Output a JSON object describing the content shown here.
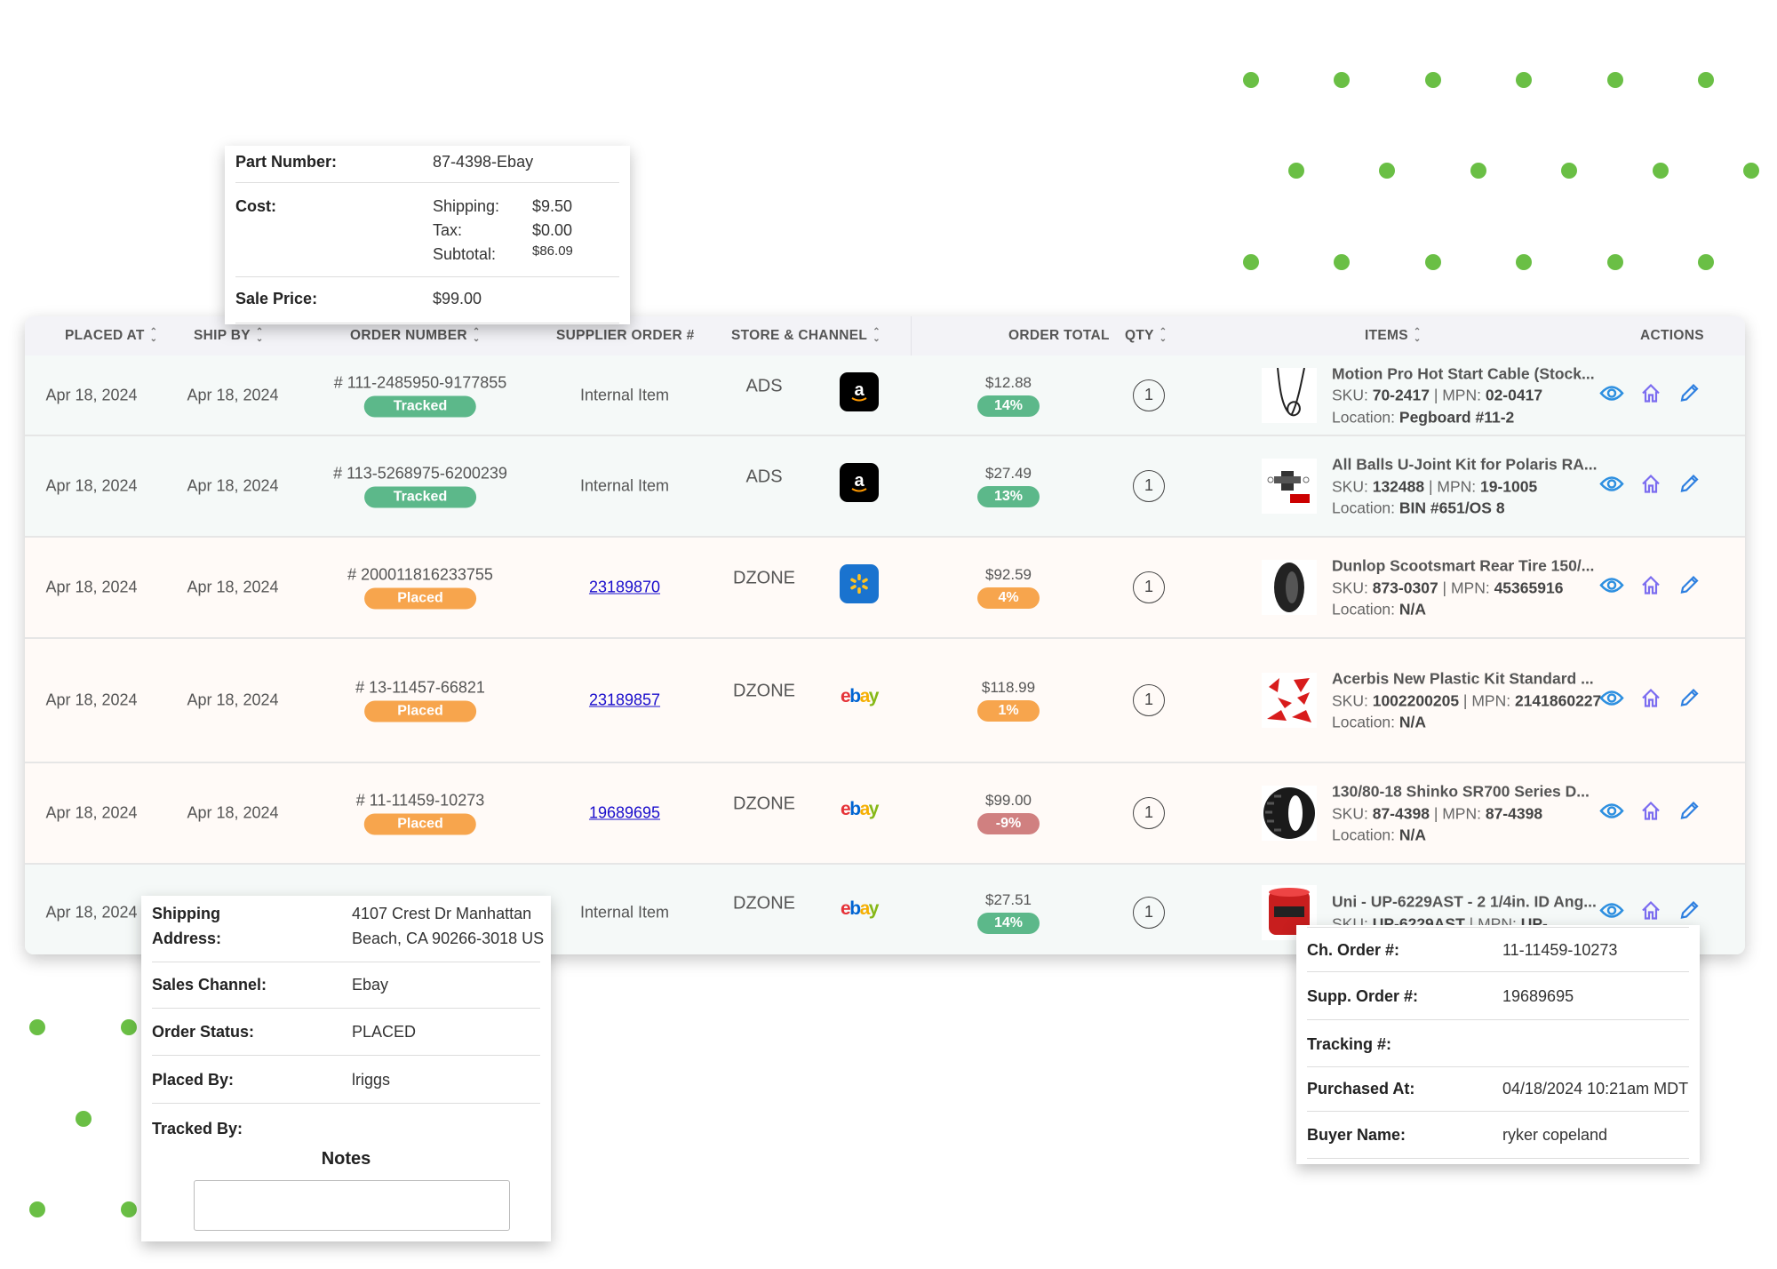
{
  "colors": {
    "accent_green_dot": "#6abf45",
    "tracked": "#5cb88a",
    "placed": "#f7a54d",
    "negative": "#d08080",
    "eye": "#2d8fe0",
    "home": "#7b6cf0",
    "pencil": "#2d7fe0"
  },
  "table": {
    "headers": [
      {
        "label": "PLACED AT",
        "sortable": true
      },
      {
        "label": "SHIP BY",
        "sortable": true
      },
      {
        "label": "ORDER NUMBER",
        "sortable": true
      },
      {
        "label": "SUPPLIER ORDER #",
        "sortable": false
      },
      {
        "label": "STORE & CHANNEL",
        "sortable": true
      },
      {
        "label": "ORDER TOTAL",
        "sortable": false
      },
      {
        "label": "QTY",
        "sortable": true
      },
      {
        "label": "ITEMS",
        "sortable": true
      },
      {
        "label": "ACTIONS",
        "sortable": false
      }
    ],
    "rows": [
      {
        "placed_at": "Apr 18, 2024",
        "ship_by": "Apr 18, 2024",
        "order_number": "# 111-2485950-9177855",
        "status": "Tracked",
        "supplier_order": "Internal Item",
        "supplier_link": false,
        "store": "ADS",
        "channel": "amazon",
        "total": "$12.88",
        "margin": "14%",
        "margin_tone": "tracked",
        "qty": "1",
        "product_icon": "cable",
        "title": "Motion Pro Hot Start Cable (Stock...",
        "sku": "70-2417",
        "mpn": "02-0417",
        "location": "Pegboard #11-2",
        "tone": "green"
      },
      {
        "placed_at": "Apr 18, 2024",
        "ship_by": "Apr 18, 2024",
        "order_number": "# 113-5268975-6200239",
        "status": "Tracked",
        "supplier_order": "Internal Item",
        "supplier_link": false,
        "store": "ADS",
        "channel": "amazon",
        "total": "$27.49",
        "margin": "13%",
        "margin_tone": "tracked",
        "qty": "1",
        "product_icon": "ujoint",
        "title": "All Balls U-Joint Kit for Polaris RA...",
        "sku": "132488",
        "mpn": "19-1005",
        "location": "BIN #651/OS 8",
        "tone": "green"
      },
      {
        "placed_at": "Apr 18, 2024",
        "ship_by": "Apr 18, 2024",
        "order_number": "# 200011816233755",
        "status": "Placed",
        "supplier_order": "23189870",
        "supplier_link": true,
        "store": "DZONE",
        "channel": "walmart",
        "total": "$92.59",
        "margin": "4%",
        "margin_tone": "placed",
        "qty": "1",
        "product_icon": "tire",
        "title": "Dunlop Scootsmart Rear Tire 150/...",
        "sku": "873-0307",
        "mpn": "45365916",
        "location": "N/A",
        "tone": "orange"
      },
      {
        "placed_at": "Apr 18, 2024",
        "ship_by": "Apr 18, 2024",
        "order_number": "# 13-11457-66821",
        "status": "Placed",
        "supplier_order": "23189857",
        "supplier_link": true,
        "store": "DZONE",
        "channel": "ebay",
        "total": "$118.99",
        "margin": "1%",
        "margin_tone": "placed",
        "qty": "1",
        "product_icon": "plastics",
        "title": "Acerbis New Plastic Kit Standard ...",
        "sku": "1002200205",
        "mpn": "2141860227",
        "location": "N/A",
        "tone": "orange"
      },
      {
        "placed_at": "Apr 18, 2024",
        "ship_by": "Apr 18, 2024",
        "order_number": "# 11-11459-10273",
        "status": "Placed",
        "supplier_order": "19689695",
        "supplier_link": true,
        "store": "DZONE",
        "channel": "ebay",
        "total": "$99.00",
        "margin": "-9%",
        "margin_tone": "negative",
        "qty": "1",
        "product_icon": "knobby-tire",
        "title": "130/80-18 Shinko SR700 Series D...",
        "sku": "87-4398",
        "mpn": "87-4398",
        "location": "N/A",
        "tone": "orange"
      },
      {
        "placed_at": "Apr 18, 2024",
        "supplier_order": "Internal Item",
        "supplier_link": false,
        "store": "DZONE",
        "channel": "ebay",
        "total": "$27.51",
        "margin": "14%",
        "margin_tone": "tracked",
        "qty": "1",
        "product_icon": "air-filter",
        "title": "Uni - UP-6229AST - 2 1/4in. ID Ang...",
        "sku": "UP-6229AST",
        "mpn": "UP-",
        "tone": "green"
      }
    ]
  },
  "labels": {
    "sku": "SKU: ",
    "mpn": " | MPN: ",
    "location": "Location: ",
    "ebay": [
      "e",
      "b",
      "a",
      "y"
    ]
  },
  "cost_popup": {
    "part_number_label": "Part Number:",
    "part_number": "87-4398-Ebay",
    "cost_label": "Cost:",
    "shipping_label": "Shipping:",
    "shipping": "$9.50",
    "tax_label": "Tax:",
    "tax": "$0.00",
    "subtotal_label": "Subtotal:",
    "subtotal": "$86.09",
    "sale_label": "Sale Price:",
    "sale": "$99.00"
  },
  "order_popup": {
    "address_label_1": "Shipping",
    "address_label_2": "Address:",
    "address_1": "4107 Crest Dr Manhattan",
    "address_2": "Beach, CA 90266-3018 US",
    "channel_label": "Sales Channel:",
    "channel": "Ebay",
    "status_label": "Order Status:",
    "status": "PLACED",
    "placed_by_label": "Placed By:",
    "placed_by": "lriggs",
    "tracked_by_label": "Tracked By:",
    "notes_label": "Notes",
    "notes_value": ""
  },
  "detail_popup": {
    "ch_order_label": "Ch. Order #:",
    "ch_order": "11-11459-10273",
    "supp_order_label": "Supp. Order #:",
    "supp_order": "19689695",
    "tracking_label": "Tracking #:",
    "tracking": "",
    "purchased_label": "Purchased At:",
    "purchased": "04/18/2024 10:21am MDT",
    "buyer_label": "Buyer Name:",
    "buyer": "ryker copeland"
  }
}
